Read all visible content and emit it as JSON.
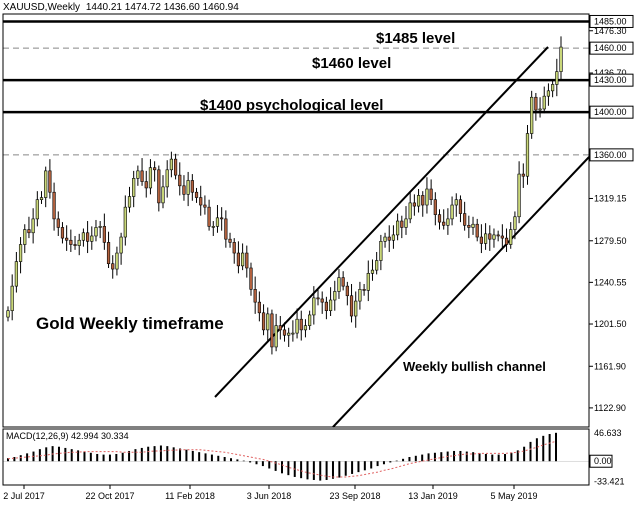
{
  "header": {
    "symbol": "XAUUSD,Weekly",
    "ohlc": "1440.21 1474.72 1436.60 1460.94"
  },
  "macd": {
    "label": "MACD(12,26,9) 42.994 30.334",
    "ticks": [
      "46.633",
      "0.00",
      "-33.421"
    ],
    "values": [
      5,
      7,
      10,
      13,
      16,
      20,
      23,
      25,
      24,
      22,
      20,
      18,
      16,
      14,
      12,
      11,
      11,
      12,
      14,
      17,
      20,
      22,
      24,
      25,
      26,
      25,
      23,
      21,
      19,
      17,
      15,
      13,
      11,
      9,
      7,
      5,
      3,
      1,
      -2,
      -5,
      -8,
      -12,
      -16,
      -20,
      -23,
      -26,
      -28,
      -30,
      -31,
      -32,
      -31,
      -29,
      -27,
      -24,
      -21,
      -18,
      -15,
      -12,
      -8,
      -5,
      -2,
      1,
      4,
      7,
      9,
      11,
      13,
      14,
      15,
      16,
      17,
      17,
      16,
      15,
      13,
      12,
      11,
      11,
      12,
      14,
      18,
      24,
      32,
      38,
      42,
      45,
      47
    ],
    "signal": [
      4,
      5,
      6,
      7,
      8,
      9,
      10,
      12,
      13,
      14,
      15,
      15,
      16,
      16,
      16,
      16,
      16,
      16,
      15,
      15,
      15,
      15,
      16,
      17,
      17,
      18,
      18,
      19,
      19,
      19,
      19,
      18,
      17,
      16,
      15,
      13,
      11,
      9,
      7,
      5,
      3,
      0,
      -3,
      -6,
      -10,
      -13,
      -16,
      -19,
      -21,
      -23,
      -25,
      -26,
      -26,
      -26,
      -25,
      -24,
      -22,
      -20,
      -18,
      -15,
      -13,
      -10,
      -7,
      -4,
      -2,
      0,
      2,
      4,
      6,
      8,
      9,
      11,
      12,
      12,
      13,
      13,
      13,
      13,
      13,
      14,
      15,
      17,
      20,
      23,
      27,
      30,
      33
    ]
  },
  "chart_data": {
    "type": "candlestick",
    "title": "XAUUSD,Weekly",
    "x_ticks": [
      "2 Jul 2017",
      "22 Oct 2017",
      "11 Feb 2018",
      "3 Jun 2018",
      "23 Sep 2018",
      "13 Jan 2019",
      "5 May 2019"
    ],
    "y_ticks": [
      "1485.00",
      "1476.30",
      "1460.00",
      "1436.70",
      "1430.00",
      "1400.00",
      "1360.00",
      "1319.15",
      "1279.50",
      "1240.55",
      "1201.50",
      "1161.90",
      "1122.90"
    ],
    "ylim": [
      1105,
      1492
    ],
    "close": [
      1214,
      1237,
      1260,
      1276,
      1290,
      1287,
      1300,
      1318,
      1320,
      1345,
      1325,
      1300,
      1292,
      1282,
      1280,
      1276,
      1275,
      1280,
      1287,
      1279,
      1284,
      1292,
      1293,
      1278,
      1258,
      1253,
      1268,
      1283,
      1311,
      1321,
      1338,
      1345,
      1335,
      1329,
      1348,
      1346,
      1315,
      1330,
      1346,
      1356,
      1341,
      1331,
      1323,
      1336,
      1325,
      1320,
      1313,
      1311,
      1293,
      1293,
      1301,
      1300,
      1281,
      1278,
      1268,
      1256,
      1268,
      1254,
      1234,
      1222,
      1212,
      1196,
      1211,
      1180,
      1200,
      1196,
      1191,
      1193,
      1193,
      1206,
      1196,
      1200,
      1210,
      1226,
      1225,
      1222,
      1214,
      1224,
      1232,
      1245,
      1237,
      1228,
      1209,
      1223,
      1234,
      1233,
      1249,
      1252,
      1261,
      1279,
      1283,
      1280,
      1285,
      1298,
      1292,
      1300,
      1315,
      1312,
      1322,
      1313,
      1328,
      1318,
      1304,
      1297,
      1294,
      1300,
      1313,
      1318,
      1305,
      1294,
      1292,
      1295,
      1283,
      1277,
      1286,
      1281,
      1285,
      1284,
      1282,
      1276,
      1290,
      1302,
      1342,
      1340,
      1380,
      1414,
      1402,
      1403,
      1415,
      1420,
      1426,
      1438,
      1461
    ],
    "ohlc_header": {
      "open": 1440.21,
      "high": 1474.72,
      "low": 1436.6,
      "close": 1460.94
    },
    "levels": [
      {
        "label": "$1485 level",
        "value": 1485,
        "style": "solid"
      },
      {
        "label": "$1460 level",
        "value": 1460,
        "style": "dashed"
      },
      {
        "label": "",
        "value": 1430,
        "style": "solid"
      },
      {
        "label": "$1400 psychological level",
        "value": 1400,
        "style": "solid"
      },
      {
        "label": "",
        "value": 1360,
        "style": "dashed"
      }
    ],
    "annotations": [
      "Gold Weekly timeframe",
      "Weekly bullish channel"
    ]
  }
}
